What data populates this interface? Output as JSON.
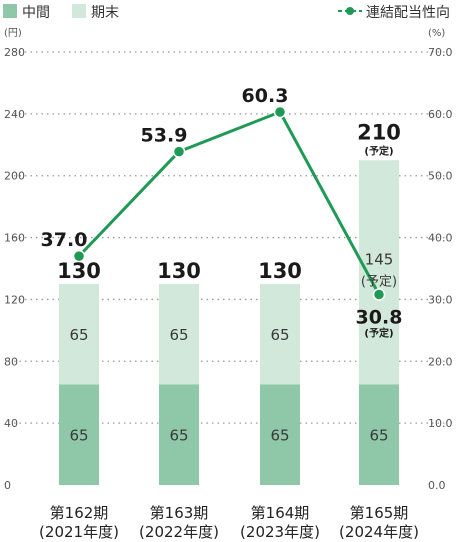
{
  "legend": {
    "interim_label": "中間",
    "year_end_label": "期末",
    "ratio_label": "連結配当性向"
  },
  "units": {
    "left": "(円)",
    "right": "(%)"
  },
  "ticks": {
    "left": [
      "0",
      "40",
      "80",
      "120",
      "160",
      "200",
      "240",
      "280"
    ],
    "right": [
      "0.0",
      "10.0",
      "20.0",
      "30.0",
      "40.0",
      "50.0",
      "60.0",
      "70.0"
    ]
  },
  "colors": {
    "interim": "#8ec8a8",
    "year_end": "#d2e8da",
    "line": "#1f9a55",
    "grid": "#9a9a9a"
  },
  "chart_data": {
    "type": "bar",
    "stacked": true,
    "categories": [
      [
        "第162期",
        "(2021年度)"
      ],
      [
        "第163期",
        "(2022年度)"
      ],
      [
        "第164期",
        "(2023年度)"
      ],
      [
        "第165期",
        "(2024年度)"
      ]
    ],
    "series": [
      {
        "name": "中間",
        "values": [
          65,
          65,
          65,
          65
        ],
        "labels": [
          "65",
          "65",
          "65",
          "65"
        ]
      },
      {
        "name": "期末",
        "values": [
          65,
          65,
          65,
          145
        ],
        "labels": [
          "65",
          "65",
          "65",
          "145"
        ]
      }
    ],
    "totals": [
      "130",
      "130",
      "130",
      "210"
    ],
    "total_notes": [
      "",
      "",
      "",
      "(予定)"
    ],
    "segment_notes": [
      "",
      "",
      "",
      "(予定)"
    ],
    "line_series": {
      "name": "連結配当性向",
      "values": [
        37.0,
        53.9,
        60.3,
        30.8
      ],
      "labels": [
        "37.0",
        "53.9",
        "60.3",
        "30.8"
      ],
      "notes": [
        "",
        "",
        "",
        "(予定)"
      ]
    },
    "ylim_left": [
      0,
      280
    ],
    "ylim_right": [
      0,
      70
    ],
    "grid": true,
    "legend_position": "top"
  }
}
